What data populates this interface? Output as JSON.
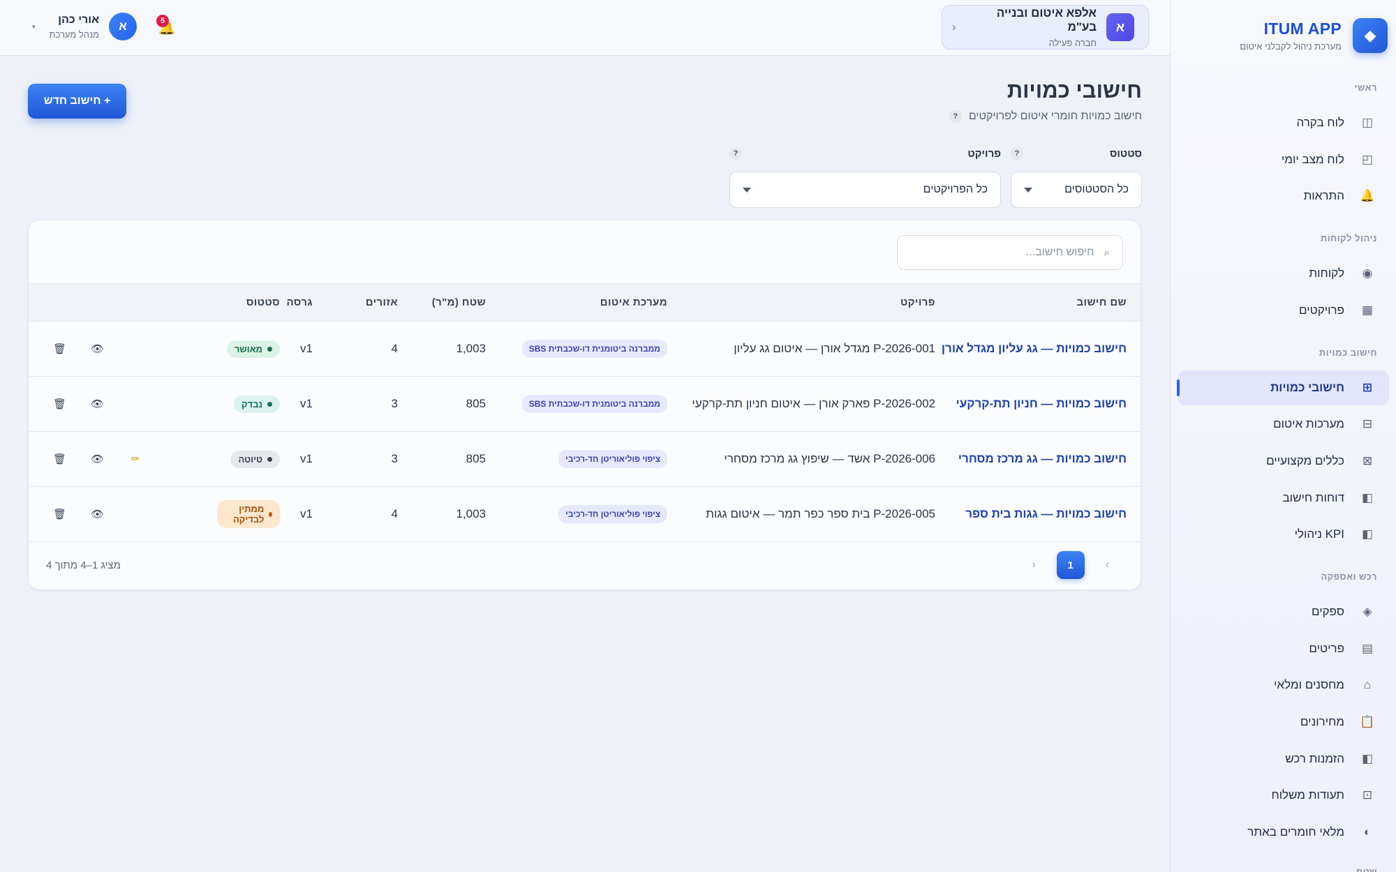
{
  "brand": {
    "name": "ITUM APP",
    "subtitle": "מערכת ניהול לקבלני איטום",
    "logo": "◆"
  },
  "sidebar": {
    "sections": [
      {
        "title": "ראשי",
        "items": [
          {
            "label": "לוח בקרה",
            "icon": "◫"
          },
          {
            "label": "לוח מצב יומי",
            "icon": "◰"
          },
          {
            "label": "התראות",
            "icon": "🔔"
          }
        ]
      },
      {
        "title": "ניהול לקוחות",
        "items": [
          {
            "label": "לקוחות",
            "icon": "◉"
          },
          {
            "label": "פרויקטים",
            "icon": "▦"
          }
        ]
      },
      {
        "title": "חישוב כמויות",
        "items": [
          {
            "label": "חישובי כמויות",
            "icon": "⊞",
            "active": true
          },
          {
            "label": "מערכות איטום",
            "icon": "⊟"
          },
          {
            "label": "כללים מקצועיים",
            "icon": "⊠"
          },
          {
            "label": "דוחות חישוב",
            "icon": "◧"
          },
          {
            "label": "KPI ניהולי",
            "icon": "◧"
          }
        ]
      },
      {
        "title": "רכש ואספקה",
        "items": [
          {
            "label": "ספקים",
            "icon": "◈"
          },
          {
            "label": "פריטים",
            "icon": "▤"
          },
          {
            "label": "מחסנים ומלאי",
            "icon": "⌂"
          },
          {
            "label": "מחירונים",
            "icon": "📋"
          },
          {
            "label": "הזמנות רכש",
            "icon": "◧"
          },
          {
            "label": "תעודות משלוח",
            "icon": "⊡"
          },
          {
            "label": "מלאי חומרים באתר",
            "icon": "◐"
          }
        ]
      },
      {
        "title": "שטח",
        "items": []
      }
    ]
  },
  "topbar": {
    "company": {
      "avatar": "א",
      "name": "אלפא איטום ובנייה בע\"מ",
      "status": "חברה פעילה",
      "chevron": "‹"
    },
    "notifications": {
      "count": "5",
      "icon": "🔔"
    },
    "user": {
      "avatar": "א",
      "name": "אורי כהן",
      "role": "מנהל מערכת",
      "caret": "▾"
    }
  },
  "page": {
    "title": "חישובי כמויות",
    "subtitle": "חישוב כמויות חומרי איטום לפרויקטים",
    "help": "?",
    "new_button": "+ חישוב חדש"
  },
  "filters": {
    "status": {
      "label": "סטטוס",
      "value": "כל הסטטוסים"
    },
    "project": {
      "label": "פרויקט",
      "value": "כל הפרויקטים"
    }
  },
  "search": {
    "placeholder": "חיפוש חישוב...",
    "icon": "⌕"
  },
  "table": {
    "headers": [
      "שם חישוב",
      "פרויקט",
      "מערכת איטום",
      "שטח (מ\"ר)",
      "אזורים",
      "גרסה",
      "סטטוס"
    ],
    "rows": [
      {
        "name": "חישוב כמויות — גג עליון מגדל אורן",
        "project": "P-2026-001 מגדל אורן — איטום גג עליון",
        "system": "ממברנה ביטומנית דו-שכבתית SBS",
        "area": "1,003",
        "zones": "4",
        "version": "v1",
        "status": "מאושר",
        "status_kind": "approved",
        "editable": false
      },
      {
        "name": "חישוב כמויות — חניון תת-קרקעי",
        "project": "P-2026-002 פארק אורן — איטום חניון תת-קרקעי",
        "system": "ממברנה ביטומנית דו-שכבתית SBS",
        "area": "805",
        "zones": "3",
        "version": "v1",
        "status": "נבדק",
        "status_kind": "checked",
        "editable": false
      },
      {
        "name": "חישוב כמויות — גג מרכז מסחרי",
        "project": "P-2026-006 אשד — שיפוץ גג מרכז מסחרי",
        "system": "ציפוי פוליאוריטן חד-רכיבי",
        "area": "805",
        "zones": "3",
        "version": "v1",
        "status": "טיוטה",
        "status_kind": "draft",
        "editable": true
      },
      {
        "name": "חישוב כמויות — גגות בית ספר",
        "project": "P-2026-005 בית ספר כפר תמר — איטום גגות",
        "system": "ציפוי פוליאוריטן חד-רכיבי",
        "area": "1,003",
        "zones": "4",
        "version": "v1",
        "status": "ממתין לבדיקה",
        "status_kind": "pending",
        "editable": false
      }
    ]
  },
  "actions": {
    "view_icon": "👁",
    "edit_icon": "✏",
    "delete_icon": "🗑"
  },
  "pagination": {
    "current": "1",
    "prev": "‹",
    "next": "›",
    "summary": "מציג 1–4 מתוך 4"
  }
}
